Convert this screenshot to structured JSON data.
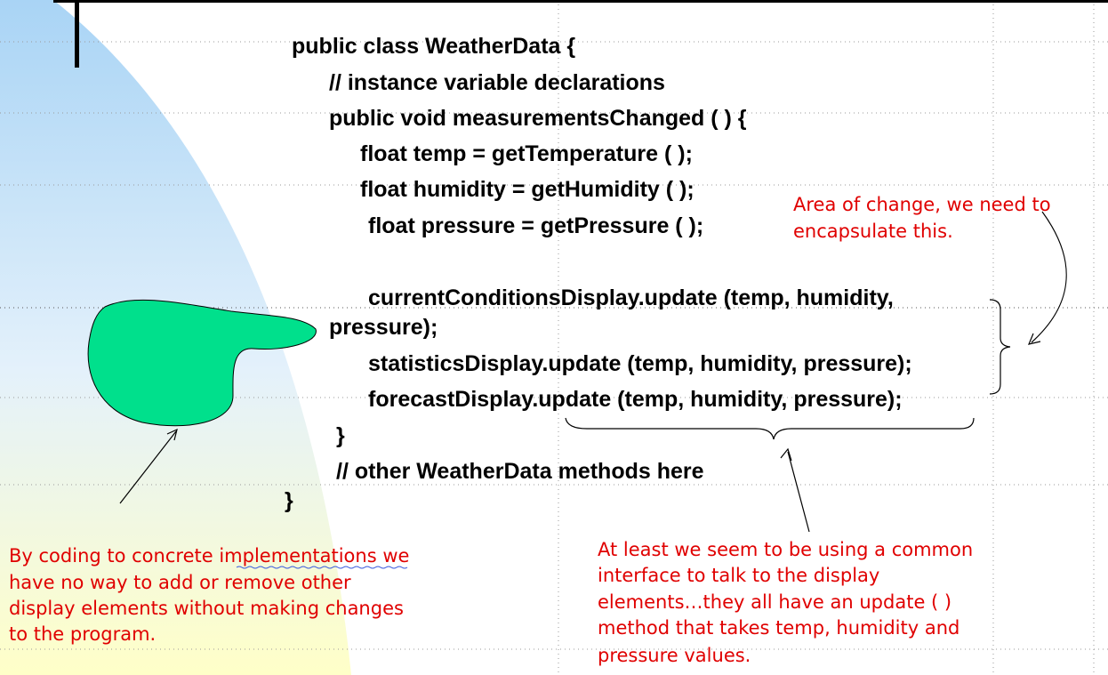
{
  "code_lines": [
    "public class WeatherData {",
    "// instance variable declarations",
    "public void measurementsChanged ( ) {",
    "float temp = getTemperature ( );",
    "float humidity = getHumidity ( );",
    "float pressure = getPressure ( );",
    "currentConditionsDisplay.update (temp, humidity,",
    "pressure);",
    "statisticsDisplay.update (temp, humidity, pressure);",
    "forecastDisplay.update (temp, humidity, pressure);",
    "}",
    "// other WeatherData methods here",
    "}"
  ],
  "annotations": {
    "change_note": [
      "Area of change, we need to",
      "encapsulate this."
    ],
    "coding_note": {
      "first_line": {
        "before": "By coding to concrete",
        "link": "implementations",
        "after": "we"
      },
      "lines": [
        "have no way to add or remove other",
        "display elements without making changes",
        "to the program."
      ]
    },
    "interface_note": [
      "At least we seem to be using a common",
      "interface to talk to the display",
      "elements…they all have an update ( )",
      "method that takes temp, humidity and",
      "pressure values."
    ]
  }
}
